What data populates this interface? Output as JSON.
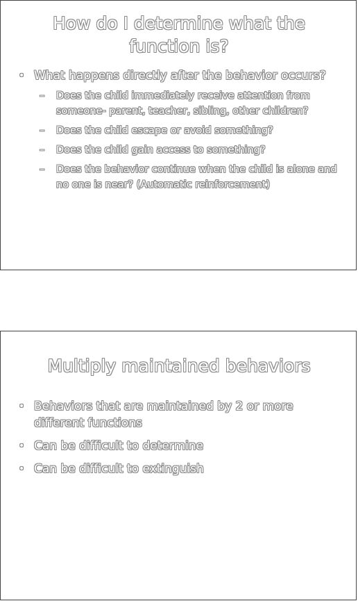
{
  "slides": [
    {
      "title": "How do I determine what the function is?",
      "bullets": [
        {
          "text": "What happens directly after the behavior occurs?",
          "subitems": [
            "Does the child immediately receive attention from someone- parent, teacher, sibling, other children?",
            "Does the child escape or avoid something?",
            "Does the child gain access to something?",
            "Does the behavior continue when the child is alone and no one is near? (Automatic reinforcement)"
          ]
        }
      ]
    },
    {
      "title": "Multiply maintained behaviors",
      "bullets": [
        {
          "text": "Behaviors that are maintained by 2 or more different functions"
        },
        {
          "text": "Can be difficult to determine"
        },
        {
          "text": "Can be difficult to extinguish"
        }
      ]
    }
  ],
  "bullet_glyph": "•",
  "dash_glyph": "–"
}
